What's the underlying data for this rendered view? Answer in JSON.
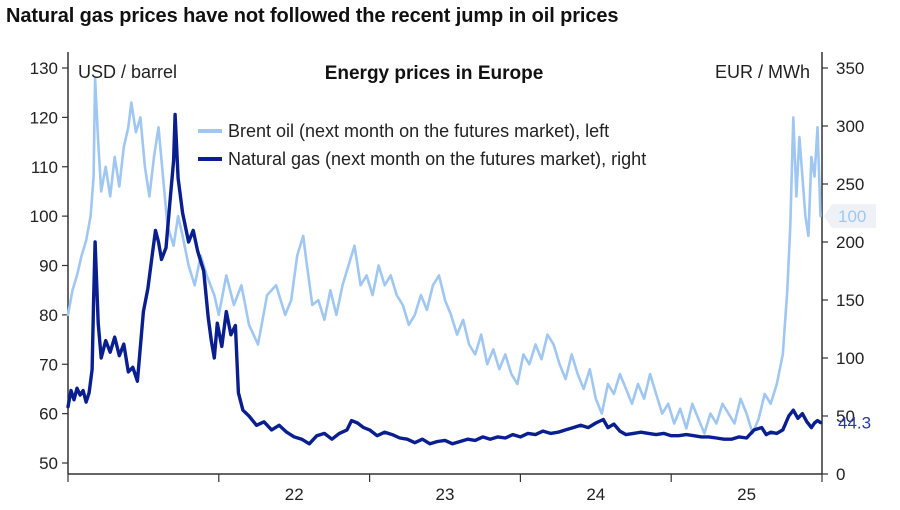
{
  "headline": "Natural gas prices have not followed the recent jump in oil prices",
  "chart_data": {
    "type": "line",
    "title": "Energy prices in Europe",
    "left_unit": "USD / barrel",
    "right_unit": "EUR / MWh",
    "ylim_left": [
      50,
      130
    ],
    "yticks_left": [
      50,
      60,
      70,
      80,
      90,
      100,
      110,
      120,
      130
    ],
    "ylim_right": [
      0,
      350
    ],
    "yticks_right": [
      0,
      50,
      100,
      150,
      200,
      250,
      300,
      350
    ],
    "x_range": [
      2021.0,
      2026.0
    ],
    "x_ticks": [
      {
        "label": "22",
        "x": 2022.0
      },
      {
        "label": "23",
        "x": 2023.0
      },
      {
        "label": "24",
        "x": 2024.0
      },
      {
        "label": "25",
        "x": 2025.0
      }
    ],
    "grid": false,
    "legend_position": "top-center",
    "series": [
      {
        "name": "Brent oil (next month on the futures market), left",
        "axis": "left",
        "color": "#9fc7f2",
        "end_label": "100",
        "points": [
          [
            2021.0,
            80
          ],
          [
            2021.03,
            85
          ],
          [
            2021.06,
            88
          ],
          [
            2021.09,
            92
          ],
          [
            2021.12,
            95
          ],
          [
            2021.15,
            100
          ],
          [
            2021.17,
            108
          ],
          [
            2021.18,
            128
          ],
          [
            2021.2,
            115
          ],
          [
            2021.22,
            105
          ],
          [
            2021.25,
            110
          ],
          [
            2021.28,
            104
          ],
          [
            2021.31,
            112
          ],
          [
            2021.34,
            106
          ],
          [
            2021.37,
            114
          ],
          [
            2021.4,
            118
          ],
          [
            2021.42,
            123
          ],
          [
            2021.45,
            117
          ],
          [
            2021.48,
            120
          ],
          [
            2021.51,
            110
          ],
          [
            2021.54,
            104
          ],
          [
            2021.57,
            112
          ],
          [
            2021.6,
            118
          ],
          [
            2021.63,
            108
          ],
          [
            2021.66,
            98
          ],
          [
            2021.7,
            94
          ],
          [
            2021.73,
            100
          ],
          [
            2021.76,
            96
          ],
          [
            2021.8,
            90
          ],
          [
            2021.84,
            86
          ],
          [
            2021.88,
            92
          ],
          [
            2021.92,
            88
          ],
          [
            2021.97,
            84
          ],
          [
            2022.0,
            80
          ],
          [
            2022.05,
            88
          ],
          [
            2022.1,
            82
          ],
          [
            2022.15,
            86
          ],
          [
            2022.2,
            78
          ],
          [
            2022.26,
            74
          ],
          [
            2022.32,
            84
          ],
          [
            2022.38,
            86
          ],
          [
            2022.44,
            80
          ],
          [
            2022.48,
            83
          ],
          [
            2022.52,
            92
          ],
          [
            2022.56,
            96
          ],
          [
            2022.58,
            91
          ],
          [
            2022.62,
            82
          ],
          [
            2022.66,
            83
          ],
          [
            2022.7,
            79
          ],
          [
            2022.74,
            85
          ],
          [
            2022.78,
            80
          ],
          [
            2022.82,
            86
          ],
          [
            2022.86,
            90
          ],
          [
            2022.9,
            94
          ],
          [
            2022.94,
            86
          ],
          [
            2022.98,
            88
          ],
          [
            2023.02,
            84
          ],
          [
            2023.06,
            90
          ],
          [
            2023.1,
            86
          ],
          [
            2023.14,
            88
          ],
          [
            2023.18,
            84
          ],
          [
            2023.22,
            82
          ],
          [
            2023.26,
            78
          ],
          [
            2023.3,
            80
          ],
          [
            2023.34,
            84
          ],
          [
            2023.38,
            81
          ],
          [
            2023.42,
            86
          ],
          [
            2023.46,
            88
          ],
          [
            2023.5,
            83
          ],
          [
            2023.54,
            80
          ],
          [
            2023.58,
            76
          ],
          [
            2023.62,
            79
          ],
          [
            2023.66,
            74
          ],
          [
            2023.7,
            72
          ],
          [
            2023.74,
            76
          ],
          [
            2023.78,
            70
          ],
          [
            2023.82,
            73
          ],
          [
            2023.86,
            69
          ],
          [
            2023.9,
            72
          ],
          [
            2023.94,
            68
          ],
          [
            2023.98,
            66
          ],
          [
            2024.02,
            72
          ],
          [
            2024.06,
            70
          ],
          [
            2024.1,
            74
          ],
          [
            2024.14,
            71
          ],
          [
            2024.18,
            76
          ],
          [
            2024.22,
            74
          ],
          [
            2024.26,
            70
          ],
          [
            2024.3,
            67
          ],
          [
            2024.34,
            72
          ],
          [
            2024.38,
            68
          ],
          [
            2024.42,
            65
          ],
          [
            2024.46,
            69
          ],
          [
            2024.5,
            63
          ],
          [
            2024.54,
            60
          ],
          [
            2024.58,
            66
          ],
          [
            2024.62,
            64
          ],
          [
            2024.66,
            68
          ],
          [
            2024.7,
            65
          ],
          [
            2024.74,
            62
          ],
          [
            2024.78,
            66
          ],
          [
            2024.82,
            63
          ],
          [
            2024.86,
            68
          ],
          [
            2024.9,
            64
          ],
          [
            2024.94,
            60
          ],
          [
            2024.98,
            62
          ],
          [
            2025.02,
            58
          ],
          [
            2025.06,
            61
          ],
          [
            2025.1,
            57
          ],
          [
            2025.14,
            62
          ],
          [
            2025.18,
            59
          ],
          [
            2025.22,
            56
          ],
          [
            2025.26,
            60
          ],
          [
            2025.3,
            58
          ],
          [
            2025.34,
            62
          ],
          [
            2025.38,
            60
          ],
          [
            2025.42,
            58
          ],
          [
            2025.46,
            63
          ],
          [
            2025.5,
            60
          ],
          [
            2025.54,
            56
          ],
          [
            2025.58,
            59
          ],
          [
            2025.62,
            64
          ],
          [
            2025.66,
            62
          ],
          [
            2025.7,
            66
          ],
          [
            2025.74,
            72
          ],
          [
            2025.77,
            85
          ],
          [
            2025.79,
            98
          ],
          [
            2025.81,
            120
          ],
          [
            2025.83,
            104
          ],
          [
            2025.85,
            116
          ],
          [
            2025.87,
            108
          ],
          [
            2025.89,
            100
          ],
          [
            2025.91,
            96
          ],
          [
            2025.93,
            112
          ],
          [
            2025.95,
            108
          ],
          [
            2025.97,
            118
          ],
          [
            2025.99,
            100
          ]
        ]
      },
      {
        "name": "Natural gas (next month on the futures market), right",
        "axis": "right",
        "color": "#0a1f8f",
        "end_label": "44.3",
        "points": [
          [
            2021.0,
            58
          ],
          [
            2021.02,
            72
          ],
          [
            2021.04,
            64
          ],
          [
            2021.06,
            74
          ],
          [
            2021.08,
            68
          ],
          [
            2021.1,
            72
          ],
          [
            2021.12,
            62
          ],
          [
            2021.14,
            70
          ],
          [
            2021.16,
            90
          ],
          [
            2021.17,
            150
          ],
          [
            2021.18,
            200
          ],
          [
            2021.2,
            130
          ],
          [
            2021.22,
            100
          ],
          [
            2021.25,
            115
          ],
          [
            2021.28,
            105
          ],
          [
            2021.31,
            118
          ],
          [
            2021.34,
            102
          ],
          [
            2021.37,
            112
          ],
          [
            2021.4,
            88
          ],
          [
            2021.43,
            92
          ],
          [
            2021.46,
            80
          ],
          [
            2021.5,
            140
          ],
          [
            2021.53,
            160
          ],
          [
            2021.56,
            190
          ],
          [
            2021.58,
            210
          ],
          [
            2021.6,
            200
          ],
          [
            2021.62,
            185
          ],
          [
            2021.65,
            195
          ],
          [
            2021.68,
            240
          ],
          [
            2021.7,
            270
          ],
          [
            2021.71,
            310
          ],
          [
            2021.73,
            255
          ],
          [
            2021.76,
            225
          ],
          [
            2021.8,
            200
          ],
          [
            2021.83,
            210
          ],
          [
            2021.86,
            192
          ],
          [
            2021.9,
            175
          ],
          [
            2021.93,
            135
          ],
          [
            2021.95,
            115
          ],
          [
            2021.97,
            100
          ],
          [
            2021.99,
            130
          ],
          [
            2022.02,
            110
          ],
          [
            2022.05,
            140
          ],
          [
            2022.08,
            120
          ],
          [
            2022.11,
            128
          ],
          [
            2022.13,
            70
          ],
          [
            2022.16,
            55
          ],
          [
            2022.2,
            50
          ],
          [
            2022.25,
            42
          ],
          [
            2022.3,
            45
          ],
          [
            2022.35,
            38
          ],
          [
            2022.4,
            42
          ],
          [
            2022.45,
            36
          ],
          [
            2022.5,
            32
          ],
          [
            2022.55,
            30
          ],
          [
            2022.6,
            26
          ],
          [
            2022.65,
            33
          ],
          [
            2022.7,
            35
          ],
          [
            2022.75,
            30
          ],
          [
            2022.8,
            35
          ],
          [
            2022.85,
            38
          ],
          [
            2022.88,
            46
          ],
          [
            2022.92,
            44
          ],
          [
            2022.96,
            40
          ],
          [
            2023.0,
            38
          ],
          [
            2023.05,
            33
          ],
          [
            2023.1,
            36
          ],
          [
            2023.15,
            34
          ],
          [
            2023.2,
            31
          ],
          [
            2023.25,
            30
          ],
          [
            2023.3,
            27
          ],
          [
            2023.35,
            30
          ],
          [
            2023.4,
            26
          ],
          [
            2023.45,
            28
          ],
          [
            2023.5,
            29
          ],
          [
            2023.55,
            26
          ],
          [
            2023.6,
            28
          ],
          [
            2023.65,
            30
          ],
          [
            2023.7,
            29
          ],
          [
            2023.75,
            32
          ],
          [
            2023.8,
            30
          ],
          [
            2023.85,
            32
          ],
          [
            2023.9,
            31
          ],
          [
            2023.95,
            34
          ],
          [
            2024.0,
            32
          ],
          [
            2024.05,
            35
          ],
          [
            2024.1,
            34
          ],
          [
            2024.15,
            37
          ],
          [
            2024.2,
            35
          ],
          [
            2024.25,
            36
          ],
          [
            2024.3,
            38
          ],
          [
            2024.35,
            40
          ],
          [
            2024.4,
            42
          ],
          [
            2024.45,
            40
          ],
          [
            2024.5,
            44
          ],
          [
            2024.55,
            47
          ],
          [
            2024.58,
            40
          ],
          [
            2024.62,
            43
          ],
          [
            2024.66,
            37
          ],
          [
            2024.7,
            34
          ],
          [
            2024.75,
            35
          ],
          [
            2024.8,
            36
          ],
          [
            2024.85,
            35
          ],
          [
            2024.9,
            34
          ],
          [
            2024.95,
            35
          ],
          [
            2025.0,
            33
          ],
          [
            2025.05,
            33
          ],
          [
            2025.1,
            34
          ],
          [
            2025.15,
            33
          ],
          [
            2025.2,
            32
          ],
          [
            2025.25,
            32
          ],
          [
            2025.3,
            31
          ],
          [
            2025.35,
            30
          ],
          [
            2025.4,
            30
          ],
          [
            2025.45,
            32
          ],
          [
            2025.5,
            31
          ],
          [
            2025.55,
            38
          ],
          [
            2025.6,
            40
          ],
          [
            2025.63,
            34
          ],
          [
            2025.66,
            36
          ],
          [
            2025.7,
            35
          ],
          [
            2025.74,
            38
          ],
          [
            2025.78,
            50
          ],
          [
            2025.81,
            55
          ],
          [
            2025.84,
            48
          ],
          [
            2025.87,
            52
          ],
          [
            2025.9,
            45
          ],
          [
            2025.93,
            40
          ],
          [
            2025.95,
            44
          ],
          [
            2025.97,
            46
          ],
          [
            2025.99,
            44.3
          ]
        ]
      }
    ]
  }
}
